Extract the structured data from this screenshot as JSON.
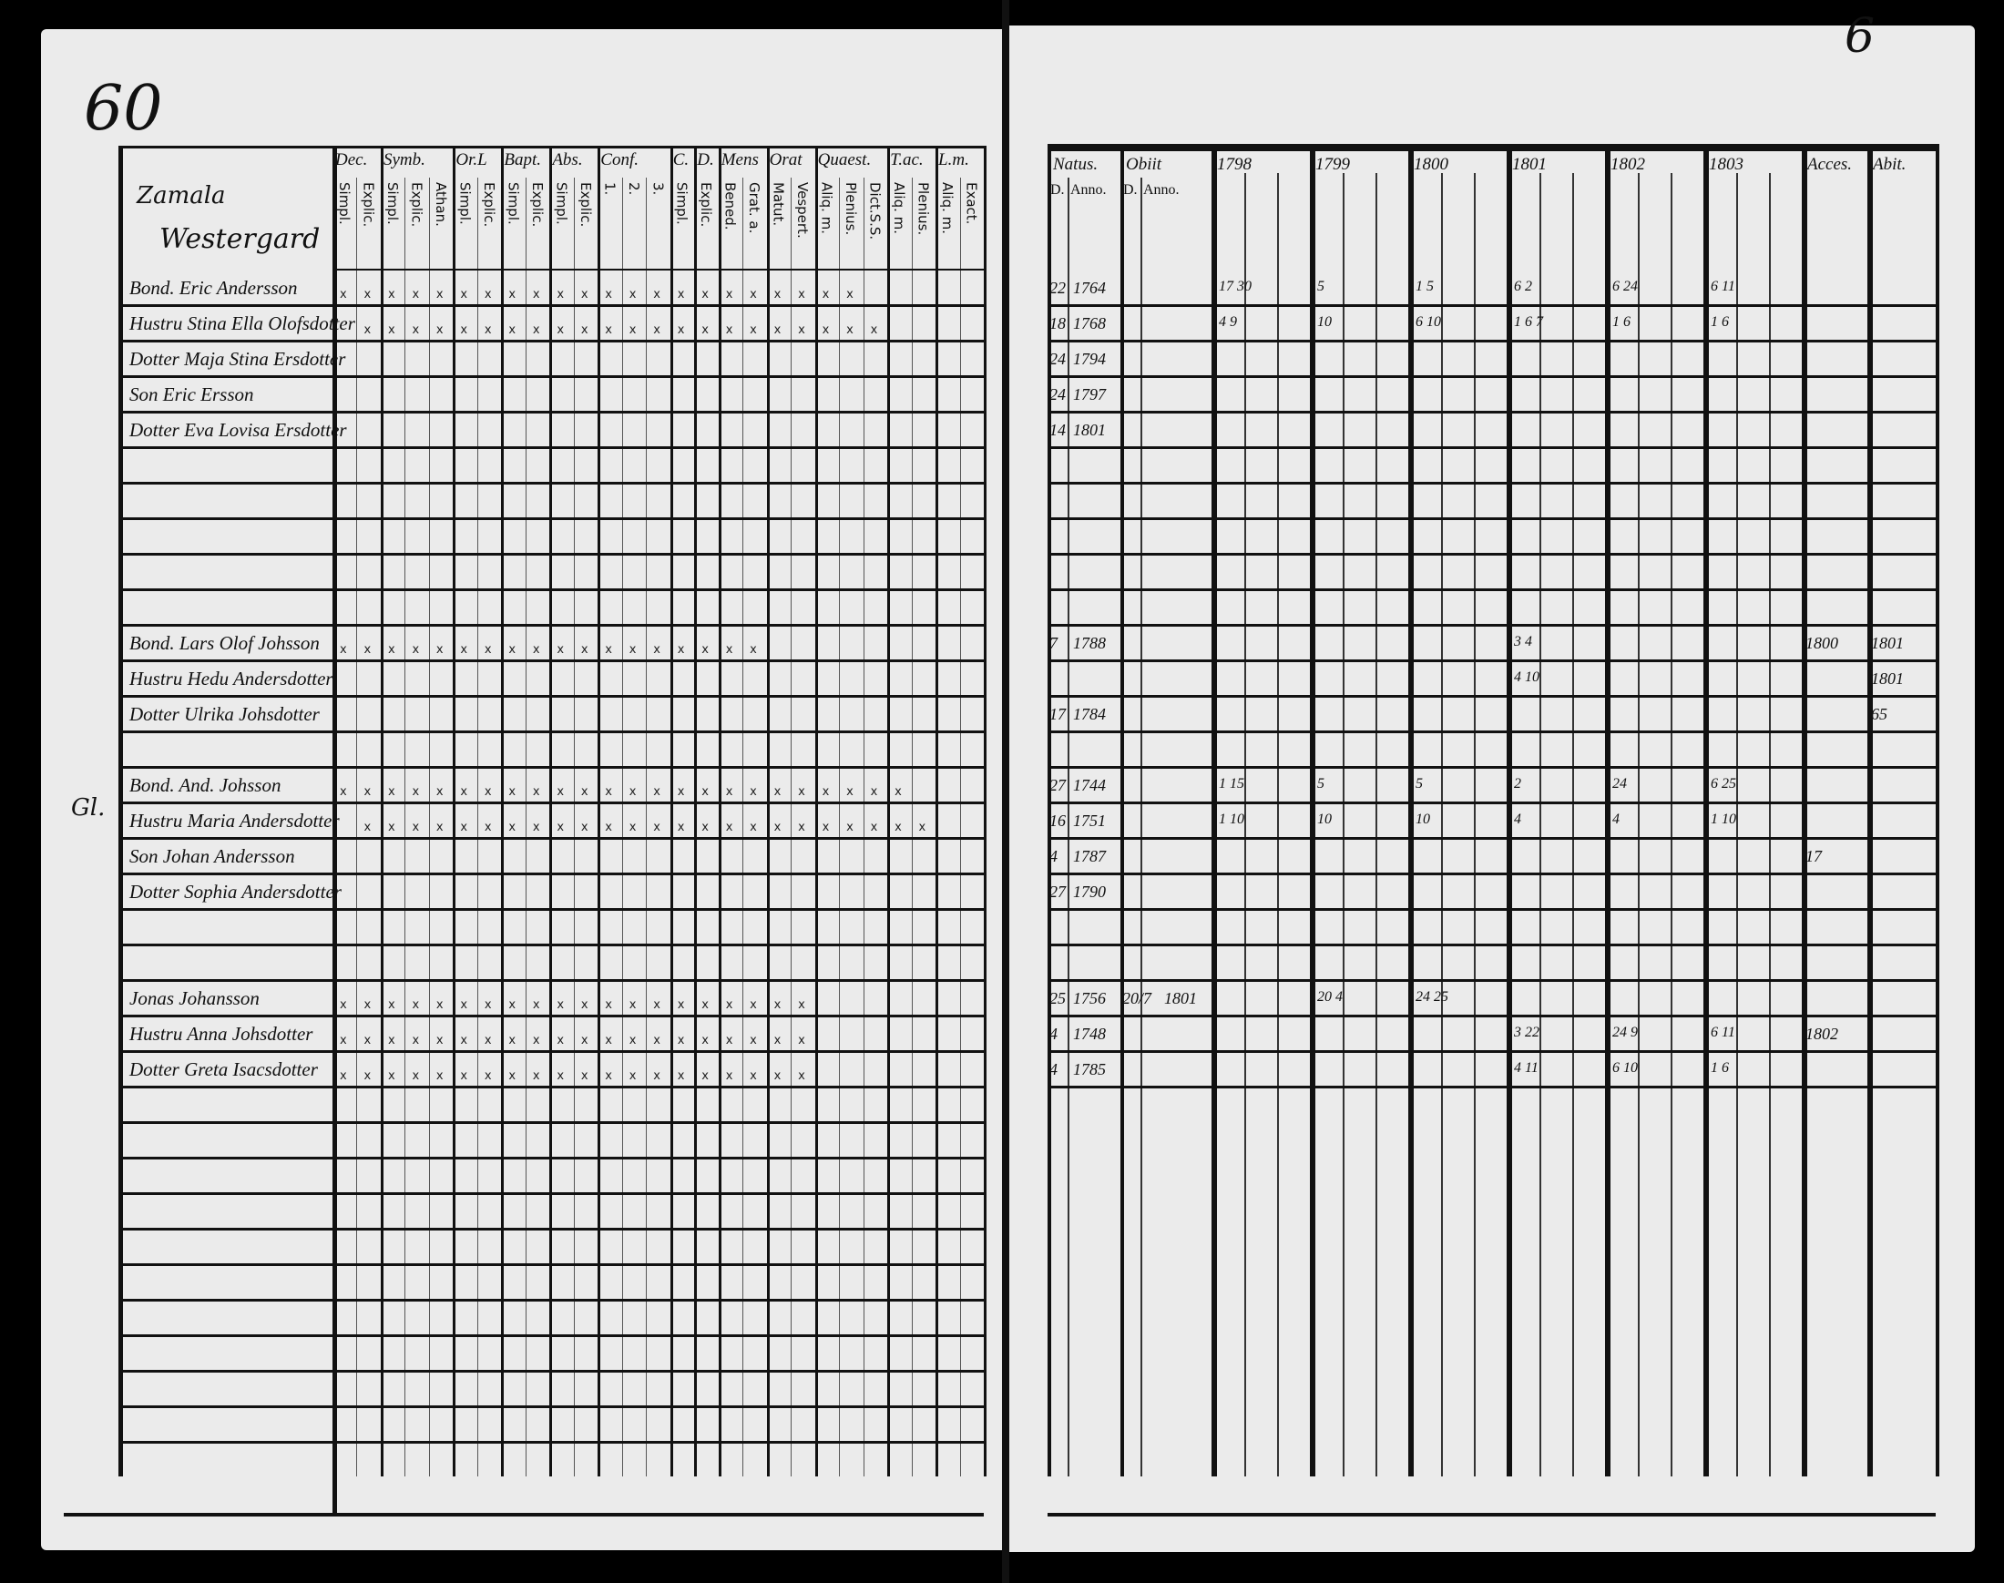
{
  "left_page": {
    "page_number": "60",
    "village": "Zamala",
    "farm": "Westergard",
    "groups": [
      {
        "label": "Dec.",
        "subs": [
          "Simpl.",
          "Explic."
        ]
      },
      {
        "label": "Symb.",
        "subs": [
          "Simpl.",
          "Explic.",
          "Athan."
        ]
      },
      {
        "label": "Or.L",
        "subs": [
          "Simpl.",
          "Explic."
        ]
      },
      {
        "label": "Bapt.",
        "subs": [
          "Simpl.",
          "Explic."
        ]
      },
      {
        "label": "Abs.",
        "subs": [
          "Simpl.",
          "Explic."
        ]
      },
      {
        "label": "Conf.",
        "subs": [
          "1.",
          "2.",
          "3."
        ]
      },
      {
        "label": "C.",
        "subs": [
          "Simpl."
        ]
      },
      {
        "label": "D.",
        "subs": [
          "Explic."
        ]
      },
      {
        "label": "Mens",
        "subs": [
          "Bened.",
          "Grat. a."
        ]
      },
      {
        "label": "Orat",
        "subs": [
          "Matut.",
          "Vespert."
        ]
      },
      {
        "label": "Quaest.",
        "subs": [
          "Aliq. m.",
          "Plenius.",
          "Dict.S.S."
        ]
      },
      {
        "label": "T.ac.",
        "subs": [
          "Aliq. m.",
          "Plenius."
        ]
      },
      {
        "label": "L.m.",
        "subs": [
          "Aliq. m.",
          "Exact."
        ]
      }
    ],
    "mark_char": "x",
    "margin_note": "Gl.",
    "rows": [
      {
        "name": "Bond. Eric Andersson",
        "marks": 22
      },
      {
        "name": "Hustru Stina Ella Olofsdotter",
        "marks": 22
      },
      {
        "name": "Dotter Maja Stina Ersdotter",
        "marks": 0
      },
      {
        "name": "Son Eric Ersson",
        "marks": 0
      },
      {
        "name": "Dotter Eva Lovisa Ersdotter",
        "marks": 0
      },
      {
        "name": "",
        "marks": 0
      },
      {
        "name": "",
        "marks": 0
      },
      {
        "name": "",
        "marks": 0
      },
      {
        "name": "",
        "marks": 0
      },
      {
        "name": "",
        "marks": 0
      },
      {
        "name": "Bond. Lars Olof Johsson",
        "marks": 18
      },
      {
        "name": "Hustru Hedu Andersdotter",
        "marks": 0
      },
      {
        "name": "Dotter Ulrika Johsdotter",
        "marks": 0
      },
      {
        "name": "",
        "marks": 0
      },
      {
        "name": "Bond. And. Johsson",
        "marks": 24
      },
      {
        "name": "Hustru Maria Andersdotter",
        "marks": 24
      },
      {
        "name": "Son Johan Andersson",
        "marks": 0
      },
      {
        "name": "Dotter Sophia Andersdotter",
        "marks": 0
      },
      {
        "name": "",
        "marks": 0
      },
      {
        "name": "",
        "marks": 0
      },
      {
        "name": "Jonas Johansson",
        "marks": 20
      },
      {
        "name": "Hustru Anna Johsdotter",
        "marks": 20
      },
      {
        "name": "Dotter Greta Isacsdotter",
        "marks": 20
      },
      {
        "name": "",
        "marks": 0
      },
      {
        "name": "",
        "marks": 0
      },
      {
        "name": "",
        "marks": 0
      },
      {
        "name": "",
        "marks": 0
      },
      {
        "name": "",
        "marks": 0
      },
      {
        "name": "",
        "marks": 0
      },
      {
        "name": "",
        "marks": 0
      },
      {
        "name": "",
        "marks": 0
      },
      {
        "name": "",
        "marks": 0
      },
      {
        "name": "",
        "marks": 0
      }
    ]
  },
  "right_page": {
    "page_number": "6",
    "groups": [
      {
        "label": "Natus.",
        "subs": [
          "D.",
          "Anno."
        ]
      },
      {
        "label": "Obiit",
        "subs": [
          "D.",
          "Anno."
        ]
      },
      {
        "label": "1798",
        "subs": [
          "",
          "",
          ""
        ]
      },
      {
        "label": "1799",
        "subs": [
          "",
          "",
          ""
        ]
      },
      {
        "label": "1800",
        "subs": [
          "",
          "",
          ""
        ]
      },
      {
        "label": "1801",
        "subs": [
          "",
          "",
          ""
        ]
      },
      {
        "label": "1802",
        "subs": [
          "",
          "",
          ""
        ]
      },
      {
        "label": "1803",
        "subs": [
          "",
          "",
          ""
        ]
      },
      {
        "label": "Acces.",
        "subs": [
          ""
        ]
      },
      {
        "label": "Abit.",
        "subs": [
          ""
        ]
      }
    ],
    "rows": [
      {
        "natus_d": "22",
        "natus_anno": "1764",
        "obiit_d": "",
        "obiit_anno": "",
        "years": [
          "17 30",
          "5",
          "1 5",
          "6 2",
          "6 24",
          "6 11"
        ],
        "acces": "",
        "abit": ""
      },
      {
        "natus_d": "18",
        "natus_anno": "1768",
        "obiit_d": "",
        "obiit_anno": "",
        "years": [
          "4 9",
          "10",
          "6 10",
          "1 6 7",
          "1 6",
          "1 6"
        ],
        "acces": "",
        "abit": ""
      },
      {
        "natus_d": "24",
        "natus_anno": "1794",
        "obiit_d": "",
        "obiit_anno": "",
        "years": [
          "",
          "",
          "",
          "",
          "",
          ""
        ],
        "acces": "",
        "abit": ""
      },
      {
        "natus_d": "24",
        "natus_anno": "1797",
        "obiit_d": "",
        "obiit_anno": "",
        "years": [
          "",
          "",
          "",
          "",
          "",
          ""
        ],
        "acces": "",
        "abit": ""
      },
      {
        "natus_d": "14",
        "natus_anno": "1801",
        "obiit_d": "",
        "obiit_anno": "",
        "years": [
          "",
          "",
          "",
          "",
          "",
          ""
        ],
        "acces": "",
        "abit": ""
      },
      {},
      {},
      {},
      {},
      {},
      {
        "natus_d": "7",
        "natus_anno": "1788",
        "obiit_d": "",
        "obiit_anno": "",
        "years": [
          "",
          "",
          "",
          "3 4",
          "",
          ""
        ],
        "acces": "1800",
        "abit": "1801"
      },
      {
        "natus_d": "",
        "natus_anno": "",
        "obiit_d": "",
        "obiit_anno": "",
        "years": [
          "",
          "",
          "",
          "4 10",
          "",
          ""
        ],
        "acces": "",
        "abit": "1801"
      },
      {
        "natus_d": "17",
        "natus_anno": "1784",
        "obiit_d": "",
        "obiit_anno": "",
        "years": [
          "",
          "",
          "",
          "",
          "",
          ""
        ],
        "acces": "",
        "abit": "65"
      },
      {},
      {
        "natus_d": "27",
        "natus_anno": "1744",
        "obiit_d": "",
        "obiit_anno": "",
        "years": [
          "1 15",
          "5",
          "5",
          "2",
          "24",
          "6 25"
        ],
        "acces": "",
        "abit": ""
      },
      {
        "natus_d": "16",
        "natus_anno": "1751",
        "obiit_d": "",
        "obiit_anno": "",
        "years": [
          "1 10",
          "10",
          "10",
          "4",
          "4",
          "1 10"
        ],
        "acces": "",
        "abit": ""
      },
      {
        "natus_d": "4",
        "natus_anno": "1787",
        "obiit_d": "",
        "obiit_anno": "",
        "years": [
          "",
          "",
          "",
          "",
          "",
          ""
        ],
        "acces": "17",
        "abit": ""
      },
      {
        "natus_d": "27",
        "natus_anno": "1790",
        "obiit_d": "",
        "obiit_anno": "",
        "years": [
          "",
          "",
          "",
          "",
          "",
          ""
        ],
        "acces": "",
        "abit": ""
      },
      {},
      {},
      {
        "natus_d": "25",
        "natus_anno": "1756",
        "obiit_d": "20/7",
        "obiit_anno": "1801",
        "years": [
          "",
          "20 4",
          "24 25",
          "",
          "",
          ""
        ],
        "acces": "",
        "abit": ""
      },
      {
        "natus_d": "4",
        "natus_anno": "1748",
        "obiit_d": "",
        "obiit_anno": "",
        "years": [
          "",
          "",
          "",
          "3 22",
          "24 9",
          "6 11"
        ],
        "acces": "1802",
        "abit": ""
      },
      {
        "natus_d": "4",
        "natus_anno": "1785",
        "obiit_d": "",
        "obiit_anno": "",
        "years": [
          "",
          "",
          "",
          "4 11",
          "6 10",
          "1 6"
        ],
        "acces": "",
        "abit": ""
      }
    ]
  }
}
